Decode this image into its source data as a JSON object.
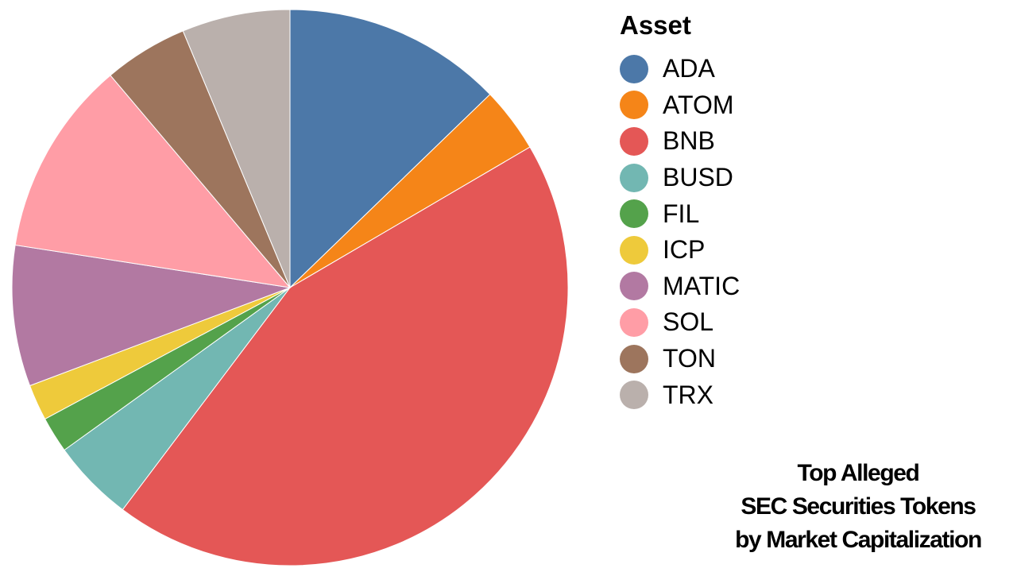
{
  "chart_data": {
    "type": "pie",
    "legend_title": "Asset",
    "legend_position": "right",
    "title_lines": [
      "Top Alleged",
      "SEC Securities Tokens",
      "by Market Capitalization"
    ],
    "slices": [
      {
        "label": "ADA",
        "value": 12.8,
        "color": "#4c78a8"
      },
      {
        "label": "ATOM",
        "value": 3.8,
        "color": "#f58518"
      },
      {
        "label": "BNB",
        "value": 43.8,
        "color": "#e45756"
      },
      {
        "label": "BUSD",
        "value": 4.8,
        "color": "#72b7b2"
      },
      {
        "label": "FIL",
        "value": 2.1,
        "color": "#54a24b"
      },
      {
        "label": "ICP",
        "value": 2.1,
        "color": "#eeca3b"
      },
      {
        "label": "MATIC",
        "value": 8.2,
        "color": "#b279a2"
      },
      {
        "label": "SOL",
        "value": 11.4,
        "color": "#ff9da6"
      },
      {
        "label": "TON",
        "value": 4.9,
        "color": "#9d755d"
      },
      {
        "label": "TRX",
        "value": 6.3,
        "color": "#bab0ac"
      }
    ]
  }
}
